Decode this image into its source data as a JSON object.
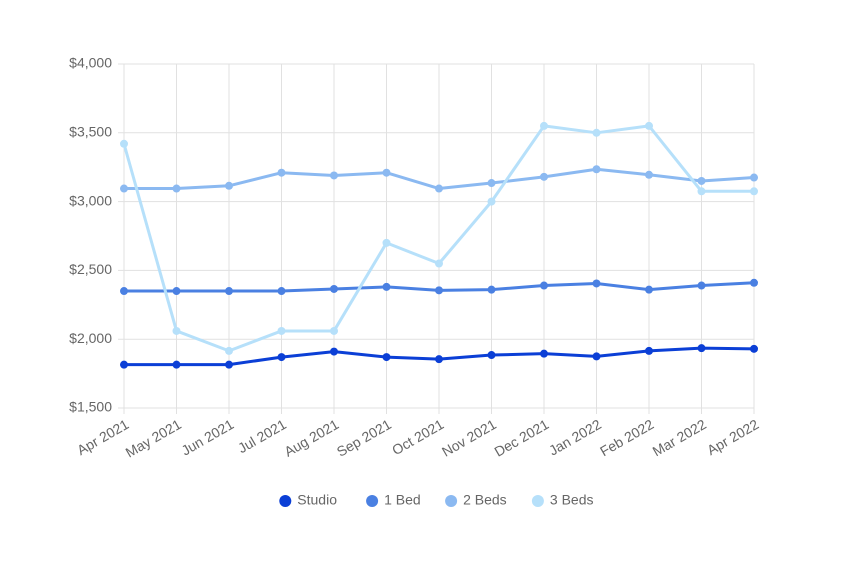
{
  "chart_data": {
    "type": "line",
    "categories": [
      "Apr 2021",
      "May 2021",
      "Jun 2021",
      "Jul 2021",
      "Aug 2021",
      "Sep 2021",
      "Oct 2021",
      "Nov 2021",
      "Dec 2021",
      "Jan 2022",
      "Feb 2022",
      "Mar 2022",
      "Apr 2022"
    ],
    "series": [
      {
        "name": "Studio",
        "color": "#0b3fd6",
        "values": [
          1815,
          1815,
          1815,
          1870,
          1910,
          1870,
          1855,
          1885,
          1895,
          1875,
          1915,
          1935,
          1930
        ]
      },
      {
        "name": "1 Bed",
        "color": "#4a80e2",
        "values": [
          2350,
          2350,
          2350,
          2350,
          2365,
          2380,
          2355,
          2360,
          2390,
          2405,
          2360,
          2390,
          2410
        ]
      },
      {
        "name": "2 Beds",
        "color": "#8bb9f1",
        "values": [
          3095,
          3095,
          3115,
          3210,
          3190,
          3210,
          3095,
          3135,
          3180,
          3235,
          3195,
          3150,
          3175
        ]
      },
      {
        "name": "3 Beds",
        "color": "#b6e0fa",
        "values": [
          3420,
          2060,
          1915,
          2060,
          2060,
          2700,
          2550,
          3000,
          3550,
          3500,
          3550,
          3075,
          3075
        ]
      }
    ],
    "ylim": [
      1500,
      4000
    ],
    "yticks": [
      {
        "value": 1500,
        "label": "$1,500"
      },
      {
        "value": 2000,
        "label": "$2,000"
      },
      {
        "value": 2500,
        "label": "$2,500"
      },
      {
        "value": 3000,
        "label": "$3,000"
      },
      {
        "value": 3500,
        "label": "$3,500"
      },
      {
        "value": 4000,
        "label": "$4,000"
      }
    ],
    "grid": true,
    "legend": "bottom"
  }
}
